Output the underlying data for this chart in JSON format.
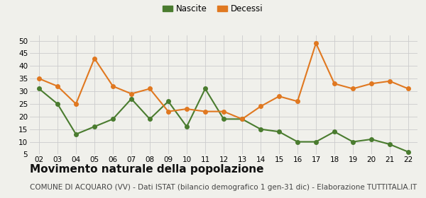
{
  "years": [
    "02",
    "03",
    "04",
    "05",
    "06",
    "07",
    "08",
    "09",
    "10",
    "11",
    "12",
    "13",
    "14",
    "15",
    "16",
    "17",
    "18",
    "19",
    "20",
    "21",
    "22"
  ],
  "nascite": [
    31,
    25,
    13,
    16,
    19,
    27,
    19,
    26,
    16,
    31,
    19,
    19,
    15,
    14,
    10,
    10,
    14,
    10,
    11,
    9,
    6
  ],
  "decessi": [
    35,
    32,
    25,
    43,
    32,
    29,
    31,
    22,
    23,
    22,
    22,
    19,
    24,
    28,
    26,
    49,
    33,
    31,
    33,
    34,
    31
  ],
  "nascite_color": "#4a7c2f",
  "decessi_color": "#e07820",
  "background_color": "#f0f0eb",
  "grid_color": "#cccccc",
  "ylim": [
    5,
    52
  ],
  "yticks": [
    5,
    10,
    15,
    20,
    25,
    30,
    35,
    40,
    45,
    50
  ],
  "title": "Movimento naturale della popolazione",
  "subtitle": "COMUNE DI ACQUARO (VV) - Dati ISTAT (bilancio demografico 1 gen-31 dic) - Elaborazione TUTTITALIA.IT",
  "legend_nascite": "Nascite",
  "legend_decessi": "Decessi",
  "title_fontsize": 11,
  "subtitle_fontsize": 7.5,
  "marker_size": 4,
  "linewidth": 1.5
}
